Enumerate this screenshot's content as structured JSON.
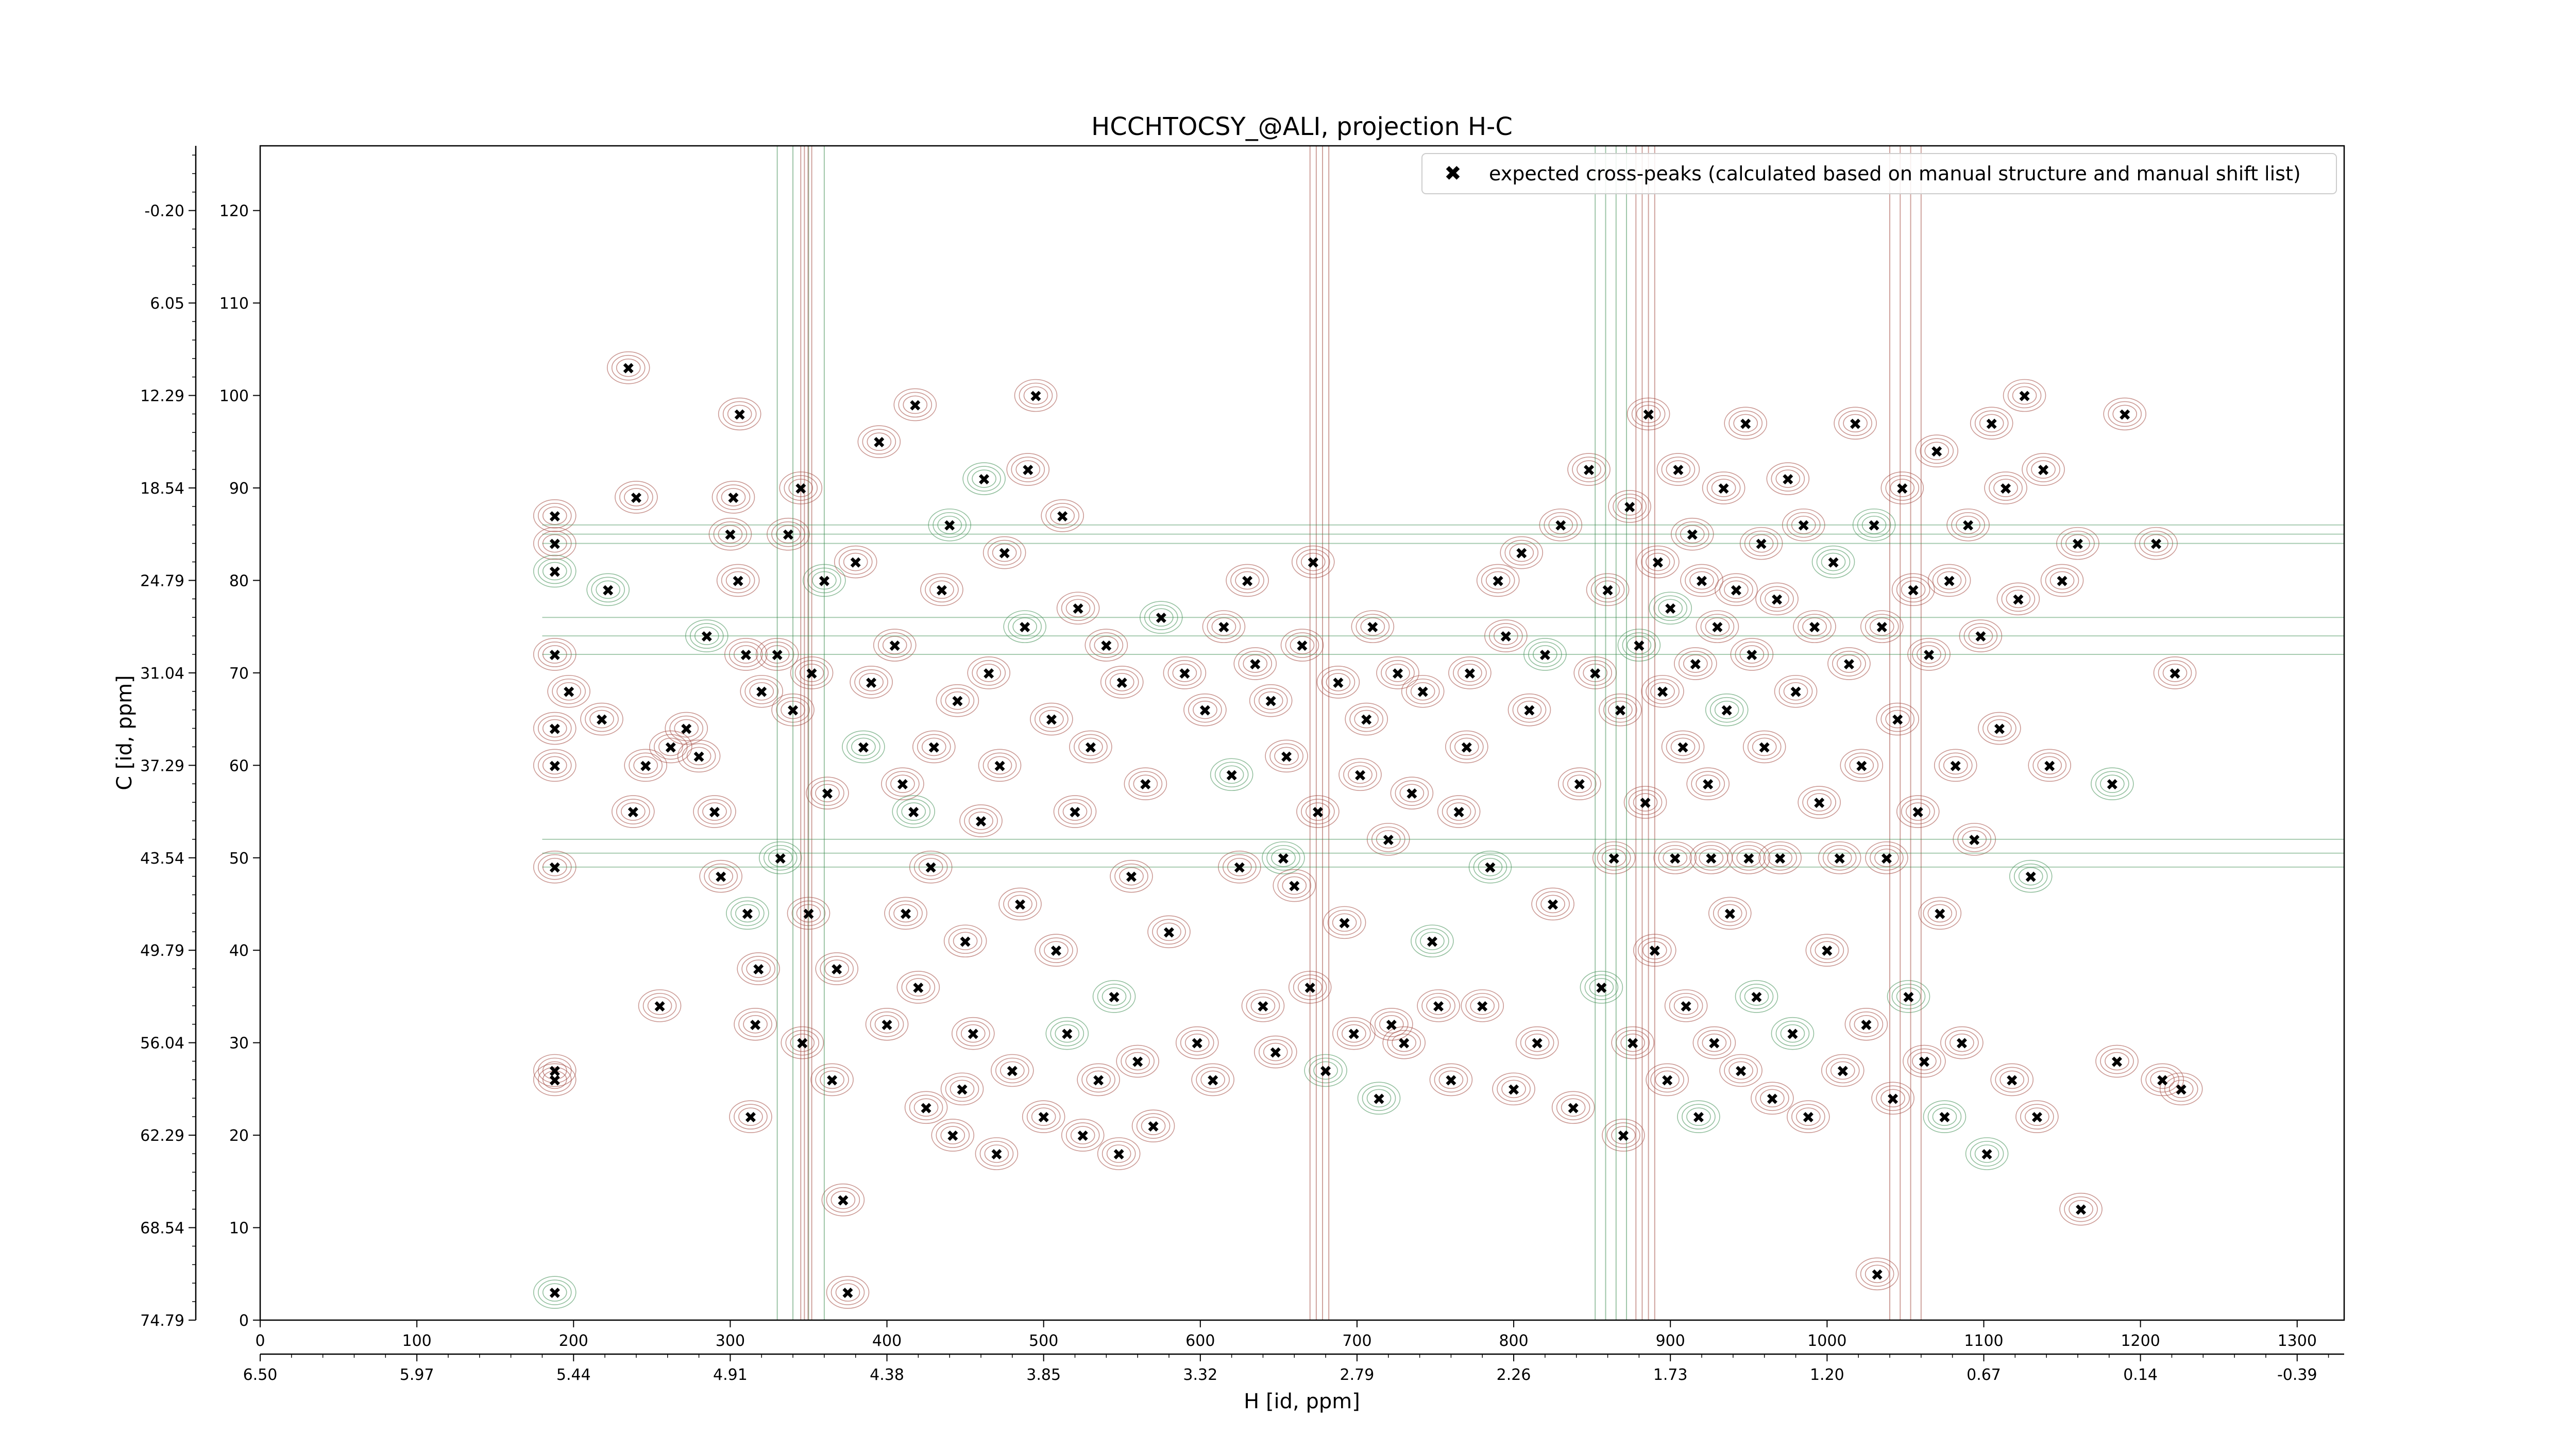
{
  "chart_data": {
    "type": "scatter",
    "title": "HCCHTOCSY_@ALI, projection H-C",
    "xlabel": "H [id, ppm]",
    "ylabel": "C [id, ppm]",
    "xlim": [
      0,
      1330
    ],
    "ylim": [
      0,
      127
    ],
    "x_index_ticks": [
      "0",
      "100",
      "200",
      "300",
      "400",
      "500",
      "600",
      "700",
      "800",
      "900",
      "1000",
      "1100",
      "1200",
      "1300"
    ],
    "x_ppm_ticks": [
      "6.50",
      "5.97",
      "5.44",
      "4.91",
      "4.38",
      "3.85",
      "3.32",
      "2.79",
      "2.26",
      "1.73",
      "1.20",
      "0.67",
      "0.14",
      "-0.39"
    ],
    "y_index_ticks": [
      "0",
      "10",
      "20",
      "30",
      "40",
      "50",
      "60",
      "70",
      "80",
      "90",
      "100",
      "110",
      "120"
    ],
    "y_ppm_ticks": [
      "74.79",
      "68.54",
      "62.29",
      "56.04",
      "49.79",
      "43.54",
      "37.29",
      "31.04",
      "24.79",
      "18.54",
      "12.29",
      "6.05",
      "-0.20"
    ],
    "legend": {
      "placement": "top-right",
      "entries": [
        "expected cross-peaks (calculated based on manual structure and manual shift list)"
      ]
    },
    "colors": {
      "positive_contour": "#a0463c",
      "negative_contour": "#3c8c50",
      "marker": "#0000e0"
    },
    "series": [
      {
        "name": "expected cross-peaks (calculated based on manual structure and manual shift list)",
        "points": [
          [
            188,
            3
          ],
          [
            188,
            49
          ],
          [
            188,
            27
          ],
          [
            188,
            26
          ],
          [
            188,
            60
          ],
          [
            188,
            64
          ],
          [
            188,
            72
          ],
          [
            188,
            81
          ],
          [
            188,
            84
          ],
          [
            188,
            87
          ],
          [
            197,
            68
          ],
          [
            235,
            103
          ],
          [
            240,
            89
          ],
          [
            218,
            65
          ],
          [
            222,
            79
          ],
          [
            238,
            55
          ],
          [
            246,
            60
          ],
          [
            255,
            34
          ],
          [
            262,
            62
          ],
          [
            272,
            64
          ],
          [
            280,
            61
          ],
          [
            285,
            74
          ],
          [
            290,
            55
          ],
          [
            294,
            48
          ],
          [
            300,
            85
          ],
          [
            302,
            89
          ],
          [
            305,
            80
          ],
          [
            306,
            98
          ],
          [
            311,
            44
          ],
          [
            310,
            72
          ],
          [
            320,
            68
          ],
          [
            316,
            32
          ],
          [
            318,
            38
          ],
          [
            313,
            22
          ],
          [
            330,
            72
          ],
          [
            332,
            50
          ],
          [
            337,
            85
          ],
          [
            340,
            66
          ],
          [
            345,
            90
          ],
          [
            346,
            30
          ],
          [
            350,
            44
          ],
          [
            352,
            70
          ],
          [
            360,
            80
          ],
          [
            362,
            57
          ],
          [
            365,
            26
          ],
          [
            368,
            38
          ],
          [
            372,
            13
          ],
          [
            375,
            3
          ],
          [
            380,
            82
          ],
          [
            385,
            62
          ],
          [
            390,
            69
          ],
          [
            395,
            95
          ],
          [
            400,
            32
          ],
          [
            405,
            73
          ],
          [
            410,
            58
          ],
          [
            412,
            44
          ],
          [
            417,
            55
          ],
          [
            418,
            99
          ],
          [
            420,
            36
          ],
          [
            425,
            23
          ],
          [
            428,
            49
          ],
          [
            430,
            62
          ],
          [
            435,
            79
          ],
          [
            440,
            86
          ],
          [
            442,
            20
          ],
          [
            445,
            67
          ],
          [
            448,
            25
          ],
          [
            450,
            41
          ],
          [
            455,
            31
          ],
          [
            460,
            54
          ],
          [
            462,
            91
          ],
          [
            465,
            70
          ],
          [
            470,
            18
          ],
          [
            472,
            60
          ],
          [
            475,
            83
          ],
          [
            480,
            27
          ],
          [
            485,
            45
          ],
          [
            488,
            75
          ],
          [
            490,
            92
          ],
          [
            495,
            100
          ],
          [
            500,
            22
          ],
          [
            505,
            65
          ],
          [
            508,
            40
          ],
          [
            512,
            87
          ],
          [
            515,
            31
          ],
          [
            520,
            55
          ],
          [
            522,
            77
          ],
          [
            525,
            20
          ],
          [
            530,
            62
          ],
          [
            535,
            26
          ],
          [
            540,
            73
          ],
          [
            545,
            35
          ],
          [
            548,
            18
          ],
          [
            550,
            69
          ],
          [
            556,
            48
          ],
          [
            560,
            28
          ],
          [
            565,
            58
          ],
          [
            570,
            21
          ],
          [
            575,
            76
          ],
          [
            580,
            42
          ],
          [
            590,
            70
          ],
          [
            598,
            30
          ],
          [
            603,
            66
          ],
          [
            608,
            26
          ],
          [
            615,
            75
          ],
          [
            620,
            59
          ],
          [
            625,
            49
          ],
          [
            630,
            80
          ],
          [
            635,
            71
          ],
          [
            640,
            34
          ],
          [
            645,
            67
          ],
          [
            648,
            29
          ],
          [
            653,
            50
          ],
          [
            655,
            61
          ],
          [
            660,
            47
          ],
          [
            665,
            73
          ],
          [
            670,
            36
          ],
          [
            672,
            82
          ],
          [
            675,
            55
          ],
          [
            680,
            27
          ],
          [
            688,
            69
          ],
          [
            692,
            43
          ],
          [
            698,
            31
          ],
          [
            702,
            59
          ],
          [
            706,
            65
          ],
          [
            710,
            75
          ],
          [
            714,
            24
          ],
          [
            720,
            52
          ],
          [
            722,
            32
          ],
          [
            726,
            70
          ],
          [
            730,
            30
          ],
          [
            735,
            57
          ],
          [
            742,
            68
          ],
          [
            748,
            41
          ],
          [
            752,
            34
          ],
          [
            760,
            26
          ],
          [
            765,
            55
          ],
          [
            770,
            62
          ],
          [
            772,
            70
          ],
          [
            780,
            34
          ],
          [
            785,
            49
          ],
          [
            790,
            80
          ],
          [
            795,
            74
          ],
          [
            800,
            25
          ],
          [
            805,
            83
          ],
          [
            810,
            66
          ],
          [
            815,
            30
          ],
          [
            820,
            72
          ],
          [
            825,
            45
          ],
          [
            830,
            86
          ],
          [
            838,
            23
          ],
          [
            842,
            58
          ],
          [
            848,
            92
          ],
          [
            852,
            70
          ],
          [
            856,
            36
          ],
          [
            860,
            79
          ],
          [
            864,
            50
          ],
          [
            868,
            66
          ],
          [
            870,
            20
          ],
          [
            874,
            88
          ],
          [
            876,
            30
          ],
          [
            880,
            73
          ],
          [
            884,
            56
          ],
          [
            886,
            98
          ],
          [
            890,
            40
          ],
          [
            892,
            82
          ],
          [
            895,
            68
          ],
          [
            898,
            26
          ],
          [
            900,
            77
          ],
          [
            903,
            50
          ],
          [
            905,
            92
          ],
          [
            908,
            62
          ],
          [
            910,
            34
          ],
          [
            914,
            85
          ],
          [
            916,
            71
          ],
          [
            918,
            22
          ],
          [
            920,
            80
          ],
          [
            924,
            58
          ],
          [
            926,
            50
          ],
          [
            928,
            30
          ],
          [
            930,
            75
          ],
          [
            934,
            90
          ],
          [
            936,
            66
          ],
          [
            938,
            44
          ],
          [
            942,
            79
          ],
          [
            945,
            27
          ],
          [
            948,
            97
          ],
          [
            950,
            50
          ],
          [
            952,
            72
          ],
          [
            955,
            35
          ],
          [
            958,
            84
          ],
          [
            960,
            62
          ],
          [
            965,
            24
          ],
          [
            968,
            78
          ],
          [
            970,
            50
          ],
          [
            975,
            91
          ],
          [
            978,
            31
          ],
          [
            980,
            68
          ],
          [
            985,
            86
          ],
          [
            988,
            22
          ],
          [
            992,
            75
          ],
          [
            995,
            56
          ],
          [
            1000,
            40
          ],
          [
            1004,
            82
          ],
          [
            1008,
            50
          ],
          [
            1010,
            27
          ],
          [
            1014,
            71
          ],
          [
            1018,
            97
          ],
          [
            1022,
            60
          ],
          [
            1025,
            32
          ],
          [
            1030,
            86
          ],
          [
            1032,
            5
          ],
          [
            1035,
            75
          ],
          [
            1038,
            50
          ],
          [
            1042,
            24
          ],
          [
            1045,
            65
          ],
          [
            1048,
            90
          ],
          [
            1052,
            35
          ],
          [
            1055,
            79
          ],
          [
            1058,
            55
          ],
          [
            1062,
            28
          ],
          [
            1065,
            72
          ],
          [
            1070,
            94
          ],
          [
            1072,
            44
          ],
          [
            1075,
            22
          ],
          [
            1078,
            80
          ],
          [
            1082,
            60
          ],
          [
            1086,
            30
          ],
          [
            1090,
            86
          ],
          [
            1094,
            52
          ],
          [
            1098,
            74
          ],
          [
            1102,
            18
          ],
          [
            1105,
            97
          ],
          [
            1110,
            64
          ],
          [
            1114,
            90
          ],
          [
            1118,
            26
          ],
          [
            1122,
            78
          ],
          [
            1126,
            100
          ],
          [
            1130,
            48
          ],
          [
            1134,
            22
          ],
          [
            1138,
            92
          ],
          [
            1142,
            60
          ],
          [
            1150,
            80
          ],
          [
            1160,
            84
          ],
          [
            1162,
            12
          ],
          [
            1182,
            58
          ],
          [
            1185,
            28
          ],
          [
            1190,
            98
          ],
          [
            1210,
            84
          ],
          [
            1214,
            26
          ],
          [
            1222,
            70
          ],
          [
            1226,
            25
          ]
        ]
      }
    ]
  }
}
